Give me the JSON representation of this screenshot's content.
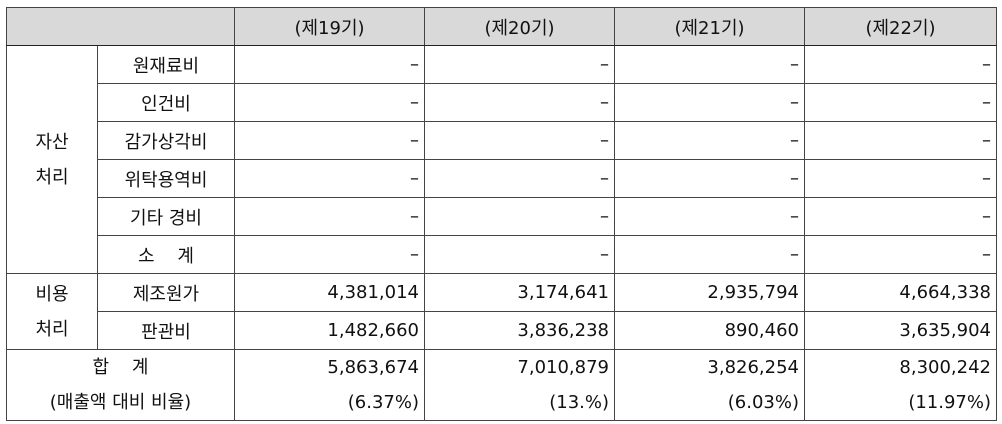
{
  "header": {
    "periods": [
      "(제19기)",
      "(제20기)",
      "(제21기)",
      "(제22기)"
    ]
  },
  "groups": {
    "asset": "자산\n처리",
    "asset_line1": "자산",
    "asset_line2": "처리",
    "expense_line1": "비용",
    "expense_line2": "처리"
  },
  "asset_rows": [
    {
      "label": "원재료비",
      "values": [
        "–",
        "–",
        "–",
        "–"
      ]
    },
    {
      "label": "인건비",
      "values": [
        "–",
        "–",
        "–",
        "–"
      ]
    },
    {
      "label": "감가상각비",
      "values": [
        "–",
        "–",
        "–",
        "–"
      ]
    },
    {
      "label": "위탁용역비",
      "values": [
        "–",
        "–",
        "–",
        "–"
      ]
    },
    {
      "label": "기타 경비",
      "values": [
        "–",
        "–",
        "–",
        "–"
      ]
    },
    {
      "label": "소    계",
      "values": [
        "–",
        "–",
        "–",
        "–"
      ]
    }
  ],
  "expense_rows": [
    {
      "label": "제조원가",
      "values": [
        "4,381,014",
        "3,174,641",
        "2,935,794",
        "4,664,338"
      ]
    },
    {
      "label": "판관비",
      "values": [
        "1,482,660",
        "3,836,238",
        "890,460",
        "3,635,904"
      ]
    }
  ],
  "total": {
    "label_line1": "합    계",
    "label_line2": "(매출액 대비 비율)",
    "values": [
      "5,863,674",
      "7,010,879",
      "3,826,254",
      "8,300,242"
    ],
    "ratios": [
      "(6.37%)",
      "(13.%)",
      "(6.03%)",
      "(11.97%)"
    ]
  }
}
